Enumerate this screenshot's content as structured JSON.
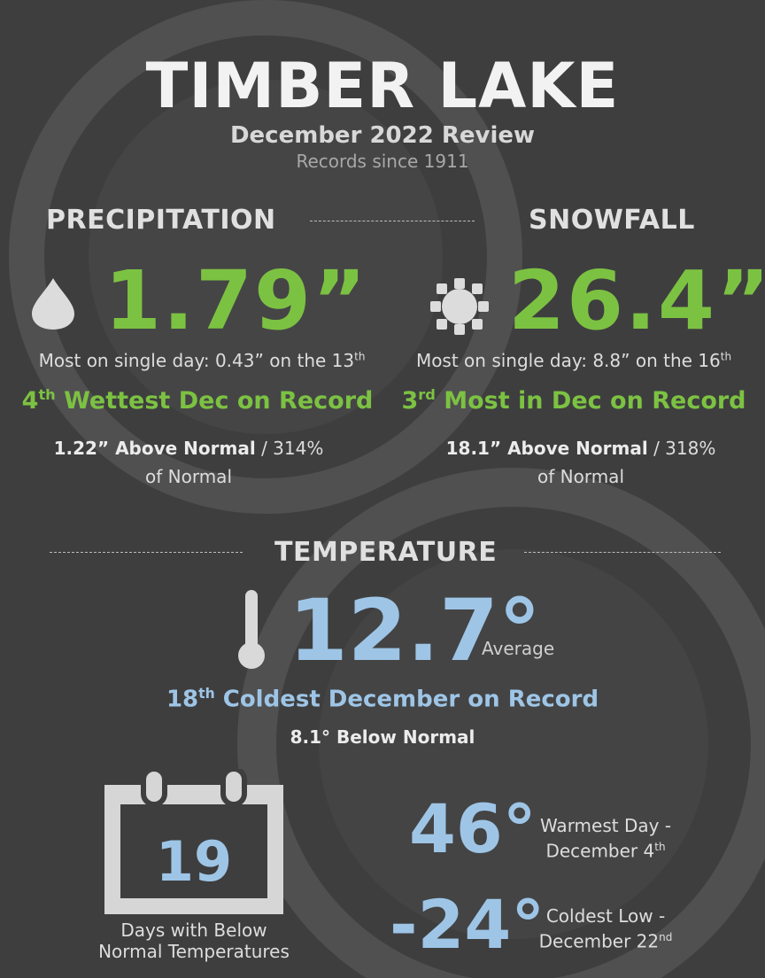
{
  "header": {
    "title": "TIMBER LAKE",
    "subtitle": "December 2022 Review",
    "records_since": "Records since 1911"
  },
  "precipitation": {
    "heading": "PRECIPITATION",
    "total": "1.79”",
    "single_day_prefix": "Most on single day: 0.43” on the 13",
    "single_day_suffix": "th",
    "rank_num": "4",
    "rank_suffix": "th",
    "rank_text": " Wettest Dec on Record",
    "departure_bold": "1.22” Above Normal",
    "departure_rest": " / 314%",
    "departure_line2": "of Normal",
    "icon": "raindrop-icon"
  },
  "snowfall": {
    "heading": "SNOWFALL",
    "total": "26.4”",
    "single_day_prefix": "Most on single day: 8.8” on the 16",
    "single_day_suffix": "th",
    "rank_num": "3",
    "rank_suffix": "rd",
    "rank_text": " Most in Dec on Record",
    "departure_bold": "18.1” Above Normal",
    "departure_rest": " / 318%",
    "departure_line2": "of Normal",
    "icon": "snowflake-icon"
  },
  "temperature": {
    "heading": "TEMPERATURE",
    "average": "12.7°",
    "average_label": "Average",
    "rank_num": "18",
    "rank_suffix": "th",
    "rank_text": " Coldest December on Record",
    "departure": "8.1° Below Normal",
    "icon": "thermometer-icon",
    "below_normal_days": "19",
    "below_normal_line1": "Days with Below",
    "below_normal_line2": "Normal Temperatures",
    "warmest_value": "46°",
    "warmest_line1": "Warmest Day -",
    "warmest_line2_prefix": "December 4",
    "warmest_line2_suffix": "th",
    "coldest_value": "-24°",
    "coldest_line1": "Coldest Low -",
    "coldest_line2_prefix": "December 22",
    "coldest_line2_suffix": "nd"
  },
  "colors": {
    "background": "#3e3e3f",
    "green": "#7cc242",
    "blue": "#9ec5e6"
  }
}
